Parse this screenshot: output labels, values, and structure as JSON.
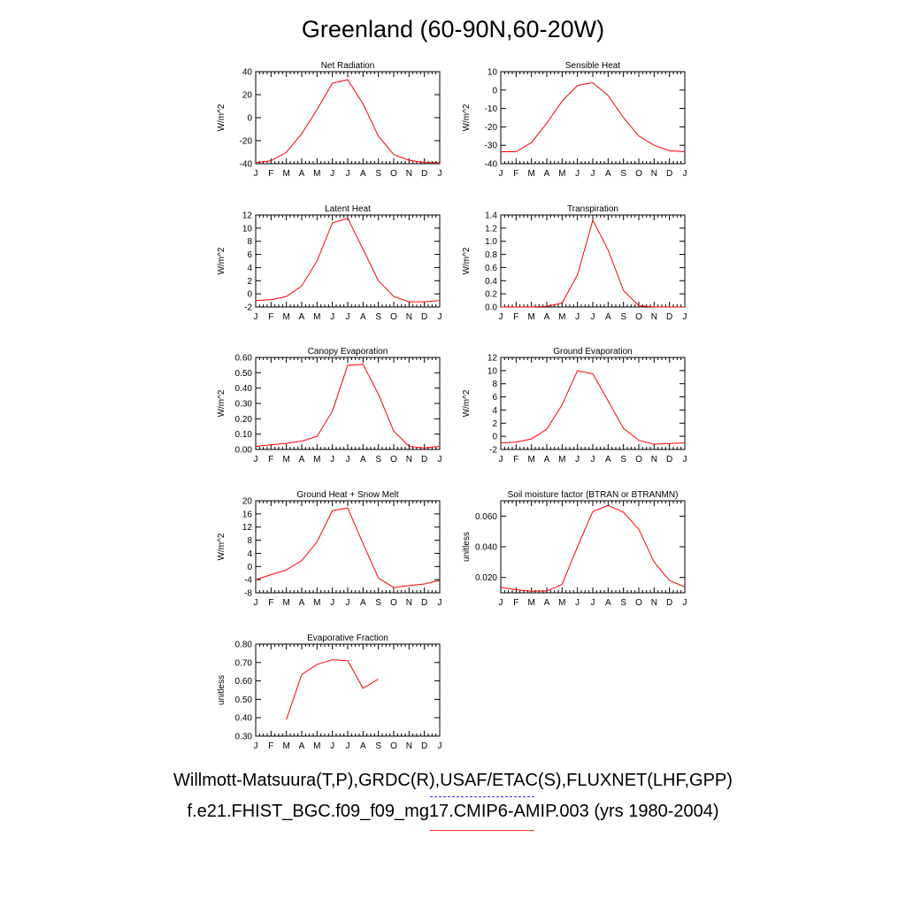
{
  "title": "Greenland (60-90N,60-20W)",
  "legend": {
    "observations": "Willmott-Matsuura(T,P),GRDC(R),USAF/ETAC(S),FLUXNET(LHF,GPP)",
    "observations_color": "#3333ee",
    "model": "f.e21.FHIST_BGC.f09_f09_mg17.CMIP6-AMIP.003 (yrs 1980-2004)",
    "model_color": "#ff0000"
  },
  "chart_data": [
    {
      "type": "line",
      "title": "Net Radiation",
      "ylabel": "W/m^2",
      "x": [
        "J",
        "F",
        "M",
        "A",
        "M",
        "J",
        "J",
        "A",
        "S",
        "O",
        "N",
        "D",
        "J"
      ],
      "ylim": [
        -40,
        40
      ],
      "yticks": [
        "-40",
        "-20",
        "0",
        "20",
        "40"
      ],
      "series": [
        {
          "values": [
            -39,
            -37.5,
            -30,
            -14,
            7,
            30,
            33,
            12,
            -16,
            -32,
            -37,
            -39,
            -39
          ]
        }
      ]
    },
    {
      "type": "line",
      "title": "Sensible Heat",
      "ylabel": "W/m^2",
      "x": [
        "J",
        "F",
        "M",
        "A",
        "M",
        "J",
        "J",
        "A",
        "S",
        "O",
        "N",
        "D",
        "J"
      ],
      "ylim": [
        -40,
        10
      ],
      "yticks": [
        "-40",
        "-30",
        "-20",
        "-10",
        "0",
        "10"
      ],
      "series": [
        {
          "values": [
            -33.5,
            -33.5,
            -28.5,
            -18,
            -6,
            2.5,
            4,
            -3,
            -15,
            -25,
            -30,
            -33,
            -33.5
          ]
        }
      ]
    },
    {
      "type": "line",
      "title": "Latent Heat",
      "ylabel": "W/m^2",
      "x": [
        "J",
        "F",
        "M",
        "A",
        "M",
        "J",
        "J",
        "A",
        "S",
        "O",
        "N",
        "D",
        "J"
      ],
      "ylim": [
        -2,
        12
      ],
      "yticks": [
        "-2",
        "0",
        "2",
        "4",
        "6",
        "8",
        "10",
        "12"
      ],
      "series": [
        {
          "values": [
            -1,
            -0.9,
            -0.4,
            1.2,
            5,
            10.8,
            11.5,
            6.8,
            2,
            -0.4,
            -1.2,
            -1.2,
            -1
          ]
        }
      ]
    },
    {
      "type": "line",
      "title": "Transpiration",
      "ylabel": "W/m^2",
      "x": [
        "J",
        "F",
        "M",
        "A",
        "M",
        "J",
        "J",
        "A",
        "S",
        "O",
        "N",
        "D",
        "J"
      ],
      "ylim": [
        0,
        1.4
      ],
      "yticks": [
        "0.0",
        "0.2",
        "0.4",
        "0.6",
        "0.8",
        "1.0",
        "1.2",
        "1.4"
      ],
      "series": [
        {
          "values": [
            0,
            0,
            0,
            0.01,
            0.06,
            0.49,
            1.32,
            0.87,
            0.25,
            0.02,
            0,
            0,
            0
          ]
        }
      ]
    },
    {
      "type": "line",
      "title": "Canopy Evaporation",
      "ylabel": "W/m^2",
      "x": [
        "J",
        "F",
        "M",
        "A",
        "M",
        "J",
        "J",
        "A",
        "S",
        "O",
        "N",
        "D",
        "J"
      ],
      "ylim": [
        0,
        0.6
      ],
      "yticks": [
        "0.00",
        "0.10",
        "0.20",
        "0.30",
        "0.40",
        "0.50",
        "0.60"
      ],
      "series": [
        {
          "values": [
            0.02,
            0.03,
            0.04,
            0.055,
            0.085,
            0.25,
            0.55,
            0.555,
            0.36,
            0.12,
            0.02,
            0.01,
            0.02
          ]
        }
      ]
    },
    {
      "type": "line",
      "title": "Ground Evaporation",
      "ylabel": "W/m^2",
      "x": [
        "J",
        "F",
        "M",
        "A",
        "M",
        "J",
        "J",
        "A",
        "S",
        "O",
        "N",
        "D",
        "J"
      ],
      "ylim": [
        -2,
        12
      ],
      "yticks": [
        "-2",
        "0",
        "2",
        "4",
        "6",
        "8",
        "10",
        "12"
      ],
      "series": [
        {
          "values": [
            -1,
            -0.9,
            -0.4,
            1.1,
            4.8,
            10,
            9.5,
            5.4,
            1.2,
            -0.6,
            -1.2,
            -1.1,
            -1
          ]
        }
      ]
    },
    {
      "type": "line",
      "title": "Ground Heat + Snow Melt",
      "ylabel": "W/m^2",
      "x": [
        "J",
        "F",
        "M",
        "A",
        "M",
        "J",
        "J",
        "A",
        "S",
        "O",
        "N",
        "D",
        "J"
      ],
      "ylim": [
        -8,
        20
      ],
      "yticks": [
        "-8",
        "-4",
        "0",
        "4",
        "8",
        "12",
        "16",
        "20"
      ],
      "series": [
        {
          "values": [
            -4,
            -2.5,
            -1,
            1.8,
            7.5,
            17,
            17.8,
            7,
            -3.5,
            -6.4,
            -5.8,
            -5.3,
            -4.2
          ]
        }
      ]
    },
    {
      "type": "line",
      "title": "Soil moisture factor (BTRAN or BTRANMN)",
      "ylabel": "unitless",
      "x": [
        "J",
        "F",
        "M",
        "A",
        "M",
        "J",
        "J",
        "A",
        "S",
        "O",
        "N",
        "D",
        "J"
      ],
      "ylim": [
        0.01,
        0.07
      ],
      "yticks": [
        "0.020",
        "0.040",
        "0.060"
      ],
      "ytick_values": [
        0.02,
        0.04,
        0.06
      ],
      "series": [
        {
          "values": [
            0.0135,
            0.012,
            0.011,
            0.0112,
            0.0155,
            0.04,
            0.063,
            0.067,
            0.0625,
            0.0515,
            0.03,
            0.018,
            0.0138
          ]
        }
      ]
    },
    {
      "type": "line",
      "title": "Evaporative Fraction",
      "ylabel": "unitless",
      "x": [
        "J",
        "F",
        "M",
        "A",
        "M",
        "J",
        "J",
        "A",
        "S",
        "O",
        "N",
        "D",
        "J"
      ],
      "ylim": [
        0.3,
        0.8
      ],
      "yticks": [
        "0.30",
        "0.40",
        "0.50",
        "0.60",
        "0.70",
        "0.80"
      ],
      "series": [
        {
          "values": [
            null,
            null,
            0.39,
            0.635,
            0.69,
            0.715,
            0.71,
            0.56,
            0.61,
            null,
            null,
            null,
            null
          ]
        }
      ]
    }
  ]
}
